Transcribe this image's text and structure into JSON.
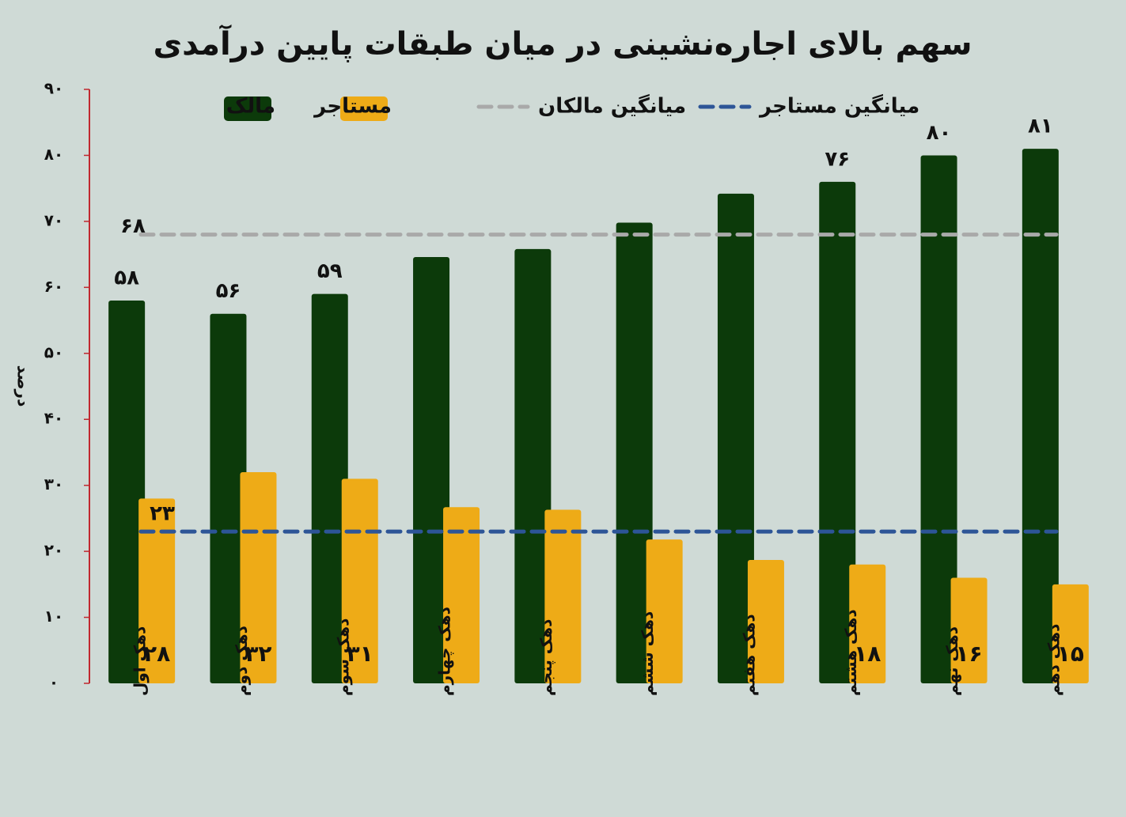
{
  "chart_data": {
    "type": "bar",
    "title": "سهم بالای اجاره‌نشینی در میان طبقات پایین درآمدی",
    "y_label": "درصد",
    "categories": [
      "دهک اول",
      "دهک دوم",
      "دهک سوم",
      "دهک چهارم",
      "دهک پنجم",
      "دهک ششم",
      "دهک هفتم",
      "دهک هشتم",
      "دهک نهم",
      "دهک دهم"
    ],
    "series": [
      {
        "name": "مالک",
        "color": "#0c3a0a",
        "values": [
          58,
          56,
          59,
          64.6,
          65.8,
          69.8,
          74.2,
          76,
          80,
          81
        ],
        "value_labels": [
          "۵۸",
          "۵۶",
          "۵۹",
          null,
          null,
          null,
          null,
          "۷۶",
          "۸۰",
          "۸۱"
        ]
      },
      {
        "name": "مستاجر",
        "color": "#eeab17",
        "values": [
          28,
          32,
          31,
          26.7,
          26.3,
          21.8,
          18.7,
          18,
          16,
          15
        ],
        "value_labels": [
          "۲۸",
          "۳۲",
          "۳۱",
          null,
          null,
          null,
          null,
          "۱۸",
          "۱۶",
          "۱۵"
        ]
      }
    ],
    "reference_lines": [
      {
        "name": "میانگین مالکان",
        "value": 68,
        "value_label": "۶۸",
        "color": "#a9a9a9"
      },
      {
        "name": "میانگین مستاجر",
        "value": 23,
        "value_label": "۲۳",
        "color": "#2d5597"
      }
    ],
    "ylim": [
      0,
      90
    ],
    "yticks": [
      {
        "value": 0,
        "label": "۰"
      },
      {
        "value": 10,
        "label": "۱۰"
      },
      {
        "value": 20,
        "label": "۲۰"
      },
      {
        "value": 30,
        "label": "۳۰"
      },
      {
        "value": 40,
        "label": "۴۰"
      },
      {
        "value": 50,
        "label": "۵۰"
      },
      {
        "value": 60,
        "label": "۶۰"
      },
      {
        "value": 70,
        "label": "۷۰"
      },
      {
        "value": 80,
        "label": "۸۰"
      },
      {
        "value": 90,
        "label": "۹۰"
      }
    ],
    "axis_color": "#c0282f"
  }
}
